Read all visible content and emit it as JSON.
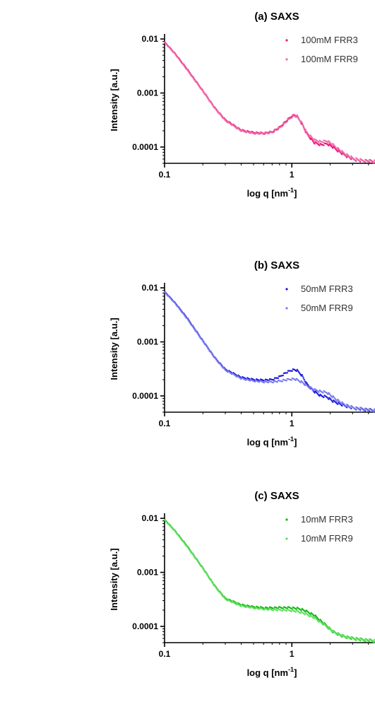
{
  "chart_data": [
    {
      "type": "scatter",
      "title": "(a) SAXS",
      "xlabel": "log q [nm⁻¹]",
      "ylabel": "Intensity [a.u.]",
      "xscale": "log",
      "yscale": "log",
      "xlim": [
        0.1,
        4.5
      ],
      "ylim": [
        5e-05,
        0.011
      ],
      "xticks": [
        {
          "value": 0.1,
          "label": "0.1"
        },
        {
          "value": 1,
          "label": "1"
        }
      ],
      "yticks": [
        {
          "value": 0.01,
          "label": "0.01"
        },
        {
          "value": 0.001,
          "label": "0.001"
        },
        {
          "value": 0.0001,
          "label": "0.0001"
        }
      ],
      "legend": "top-right",
      "grid": false,
      "series": [
        {
          "name": "100mM FRR3",
          "color": "#e8157d",
          "x": [
            0.1,
            0.12,
            0.15,
            0.2,
            0.25,
            0.3,
            0.4,
            0.5,
            0.6,
            0.7,
            0.8,
            0.9,
            1.0,
            1.05,
            1.1,
            1.2,
            1.3,
            1.5,
            1.7,
            1.9,
            2.1,
            2.5,
            3.0,
            3.5,
            4.0,
            4.5
          ],
          "y": [
            0.0088,
            0.0055,
            0.0028,
            0.0011,
            0.00052,
            0.00032,
            0.000205,
            0.000185,
            0.00018,
            0.00019,
            0.00023,
            0.0003,
            0.000375,
            0.00039,
            0.00037,
            0.00027,
            0.00018,
            0.00012,
            0.00011,
            0.000115,
            0.0001,
            7.5e-05,
            6e-05,
            5.6e-05,
            5.5e-05,
            5.4e-05
          ]
        },
        {
          "name": "100mM FRR9",
          "color": "#f06aa8",
          "x": [
            0.1,
            0.12,
            0.15,
            0.2,
            0.25,
            0.3,
            0.4,
            0.5,
            0.6,
            0.7,
            0.8,
            0.9,
            1.0,
            1.05,
            1.1,
            1.2,
            1.3,
            1.5,
            1.7,
            1.9,
            2.1,
            2.5,
            3.0,
            3.5,
            4.0,
            4.5
          ],
          "y": [
            0.0086,
            0.0054,
            0.0027,
            0.00108,
            0.00051,
            0.00031,
            0.0002,
            0.00018,
            0.000178,
            0.000188,
            0.000225,
            0.000292,
            0.000365,
            0.00038,
            0.00036,
            0.00028,
            0.00019,
            0.000135,
            0.000125,
            0.00013,
            0.00011,
            8e-05,
            6.2e-05,
            5.7e-05,
            5.5e-05,
            5.4e-05
          ]
        }
      ]
    },
    {
      "type": "scatter",
      "title": "(b) SAXS",
      "xlabel": "log q [nm⁻¹]",
      "ylabel": "Intensity [a.u.]",
      "xscale": "log",
      "yscale": "log",
      "xlim": [
        0.1,
        4.5
      ],
      "ylim": [
        5e-05,
        0.011
      ],
      "xticks": [
        {
          "value": 0.1,
          "label": "0.1"
        },
        {
          "value": 1,
          "label": "1"
        }
      ],
      "yticks": [
        {
          "value": 0.01,
          "label": "0.01"
        },
        {
          "value": 0.001,
          "label": "0.001"
        },
        {
          "value": 0.0001,
          "label": "0.0001"
        }
      ],
      "legend": "top-right",
      "grid": false,
      "series": [
        {
          "name": "50mM FRR3",
          "color": "#1a1adb",
          "x": [
            0.1,
            0.12,
            0.15,
            0.2,
            0.25,
            0.3,
            0.4,
            0.5,
            0.6,
            0.7,
            0.8,
            0.9,
            1.0,
            1.05,
            1.1,
            1.2,
            1.3,
            1.5,
            1.7,
            1.9,
            2.1,
            2.5,
            3.0,
            3.5,
            4.0,
            4.5
          ],
          "y": [
            0.0085,
            0.0054,
            0.0028,
            0.00105,
            0.0005,
            0.00031,
            0.00022,
            0.0002,
            0.000195,
            0.0002,
            0.000225,
            0.00027,
            0.0003,
            0.000305,
            0.000295,
            0.00024,
            0.00017,
            0.00012,
            0.0001,
            9.5e-05,
            8e-05,
            6.8e-05,
            6e-05,
            5.7e-05,
            5.5e-05,
            5.4e-05
          ]
        },
        {
          "name": "50mM FRR9",
          "color": "#7a7aee",
          "x": [
            0.1,
            0.12,
            0.15,
            0.2,
            0.25,
            0.3,
            0.4,
            0.5,
            0.6,
            0.7,
            0.8,
            0.9,
            1.0,
            1.05,
            1.1,
            1.2,
            1.3,
            1.5,
            1.7,
            1.9,
            2.1,
            2.5,
            3.0,
            3.5,
            4.0,
            4.5
          ],
          "y": [
            0.0083,
            0.0053,
            0.0027,
            0.00103,
            0.00049,
            0.0003,
            0.00021,
            0.00019,
            0.000182,
            0.000182,
            0.000188,
            0.000198,
            0.000205,
            0.000205,
            0.000198,
            0.00018,
            0.000155,
            0.00013,
            0.00012,
            0.000115,
            9.5e-05,
            7.2e-05,
            6.1e-05,
            5.7e-05,
            5.5e-05,
            5.4e-05
          ]
        }
      ]
    },
    {
      "type": "scatter",
      "title": "(c) SAXS",
      "xlabel": "log q [nm⁻¹]",
      "ylabel": "Intensity [a.u.]",
      "xscale": "log",
      "yscale": "log",
      "xlim": [
        0.1,
        4.5
      ],
      "ylim": [
        5e-05,
        0.011
      ],
      "xticks": [
        {
          "value": 0.1,
          "label": "0.1"
        },
        {
          "value": 1,
          "label": "1"
        }
      ],
      "yticks": [
        {
          "value": 0.01,
          "label": "0.01"
        },
        {
          "value": 0.001,
          "label": "0.001"
        },
        {
          "value": 0.0001,
          "label": "0.0001"
        }
      ],
      "legend": "top-right",
      "grid": false,
      "series": [
        {
          "name": "10mM FRR3",
          "color": "#12b812",
          "x": [
            0.1,
            0.12,
            0.15,
            0.2,
            0.25,
            0.3,
            0.4,
            0.5,
            0.6,
            0.7,
            0.8,
            0.9,
            1.0,
            1.1,
            1.2,
            1.3,
            1.5,
            1.7,
            1.9,
            2.1,
            2.5,
            3.0,
            3.5,
            4.0,
            4.5
          ],
          "y": [
            0.0095,
            0.006,
            0.0031,
            0.0012,
            0.00055,
            0.00033,
            0.00025,
            0.00023,
            0.00022,
            0.00022,
            0.000222,
            0.000222,
            0.00022,
            0.000215,
            0.000205,
            0.00019,
            0.00016,
            0.000125,
            0.0001,
            8e-05,
            6.6e-05,
            6e-05,
            5.7e-05,
            5.5e-05,
            5.4e-05
          ]
        },
        {
          "name": "10mM FRR9",
          "color": "#5ee05e",
          "x": [
            0.1,
            0.12,
            0.15,
            0.2,
            0.25,
            0.3,
            0.4,
            0.5,
            0.6,
            0.7,
            0.8,
            0.9,
            1.0,
            1.1,
            1.2,
            1.3,
            1.5,
            1.7,
            1.9,
            2.1,
            2.5,
            3.0,
            3.5,
            4.0,
            4.5
          ],
          "y": [
            0.0093,
            0.0059,
            0.003,
            0.00118,
            0.00054,
            0.00032,
            0.00024,
            0.00022,
            0.00021,
            0.000205,
            0.000202,
            0.0002,
            0.000196,
            0.00019,
            0.00018,
            0.000168,
            0.000145,
            0.000118,
            9.75e-05,
            8e-05,
            6.6e-05,
            6e-05,
            5.7e-05,
            5.5e-05,
            5.4e-05
          ]
        }
      ]
    }
  ]
}
